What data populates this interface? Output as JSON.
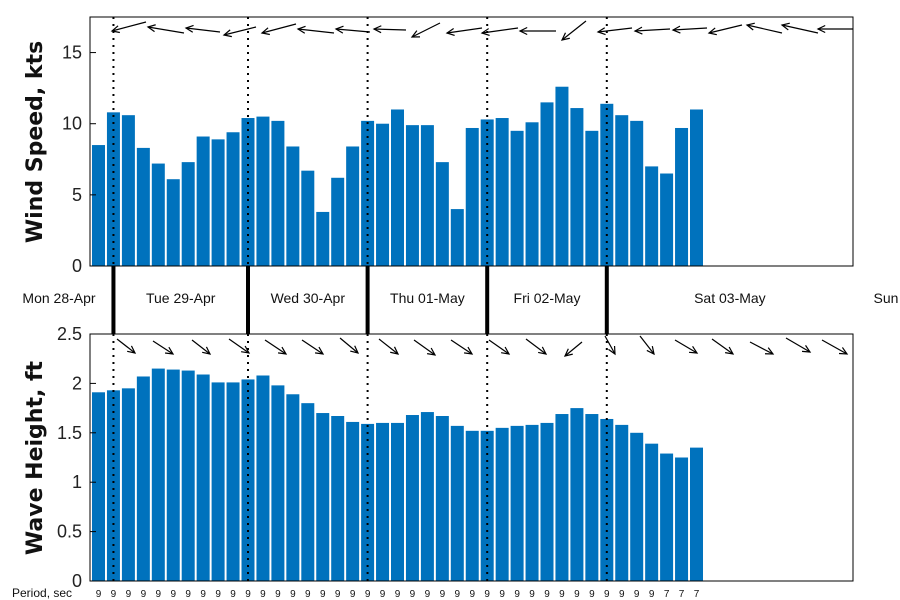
{
  "chart_data": [
    {
      "type": "bar",
      "ylabel": "Wind Speed, kts",
      "ylim": [
        0,
        17.5
      ],
      "yticks": [
        "0",
        "5",
        "10",
        "15"
      ],
      "color": "#0072BD",
      "values": [
        8.5,
        10.8,
        10.6,
        8.3,
        7.2,
        6.1,
        7.3,
        9.1,
        8.9,
        9.4,
        10.4,
        10.5,
        10.2,
        8.4,
        6.7,
        3.8,
        6.2,
        8.4,
        10.2,
        10.0,
        11.0,
        9.9,
        9.9,
        7.3,
        4.0,
        9.7,
        10.3,
        10.4,
        9.5,
        10.1,
        11.5,
        12.6,
        11.1,
        9.5,
        11.4,
        10.6,
        10.2,
        7.0,
        6.5,
        9.7,
        11.0
      ],
      "direction_arrows": "wind_from_east"
    },
    {
      "type": "bar",
      "ylabel": "Wave Height, ft",
      "ylim": [
        0,
        2.5
      ],
      "yticks": [
        "0",
        "0.5",
        "1",
        "1.5",
        "2",
        "2.5"
      ],
      "color": "#0072BD",
      "values": [
        1.91,
        1.93,
        1.95,
        2.07,
        2.15,
        2.14,
        2.13,
        2.09,
        2.01,
        2.01,
        2.04,
        2.08,
        1.98,
        1.89,
        1.8,
        1.7,
        1.67,
        1.61,
        1.59,
        1.6,
        1.6,
        1.68,
        1.71,
        1.67,
        1.57,
        1.52,
        1.52,
        1.55,
        1.57,
        1.58,
        1.6,
        1.69,
        1.75,
        1.69,
        1.64,
        1.58,
        1.5,
        1.39,
        1.29,
        1.25,
        1.35
      ],
      "direction_arrows": "swell_from_northwest"
    }
  ],
  "days": [
    "Mon 28-Apr",
    "Tue 29-Apr",
    "Wed 30-Apr",
    "Thu 01-May",
    "Fri 02-May",
    "Sat 03-May",
    "Sun"
  ],
  "period_label": "Period, sec",
  "periods": [
    "9",
    "9",
    "9",
    "9",
    "9",
    "9",
    "9",
    "9",
    "9",
    "9",
    "9",
    "9",
    "9",
    "9",
    "9",
    "9",
    "9",
    "9",
    "9",
    "9",
    "9",
    "9",
    "9",
    "9",
    "9",
    "9",
    "9",
    "9",
    "9",
    "9",
    "9",
    "9",
    "9",
    "9",
    "9",
    "9",
    "9",
    "9",
    "7",
    "7",
    "7"
  ]
}
